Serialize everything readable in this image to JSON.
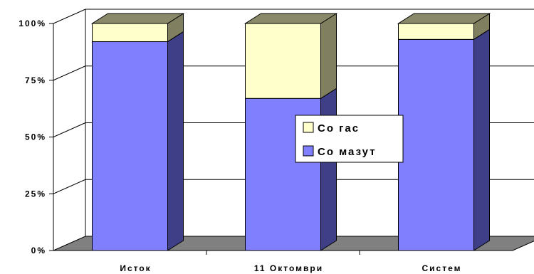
{
  "chart_data": {
    "type": "bar",
    "stacked": true,
    "percent_stacked": true,
    "categories": [
      "Исток",
      "11 Октомври",
      "Систем"
    ],
    "series": [
      {
        "name": "Со мазут",
        "values": [
          92,
          67,
          93
        ],
        "color": "#8080ff",
        "side_color": "#3f3f88",
        "top_color": "#6a6ad8"
      },
      {
        "name": "Со гас",
        "values": [
          8,
          33,
          7
        ],
        "color": "#ffffcc",
        "side_color": "#808060",
        "top_color": "#8a8a6a"
      }
    ],
    "yticks": [
      "0%",
      "25%",
      "50%",
      "75%",
      "100%"
    ],
    "ylim": [
      0,
      100
    ],
    "grid": true,
    "legend_entries": [
      "Со гас",
      "Со мазут"
    ],
    "legend_position": "right",
    "floor_color": "#808080"
  }
}
